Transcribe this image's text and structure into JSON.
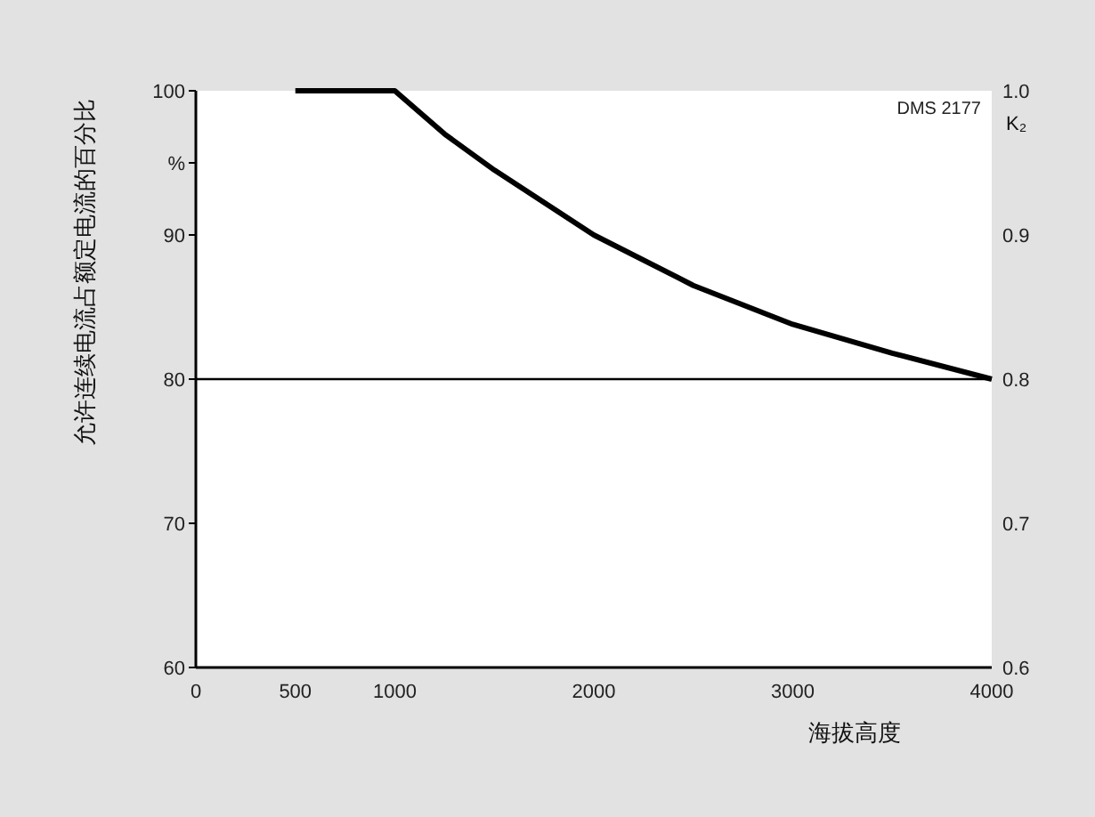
{
  "chart_data": {
    "type": "line",
    "xlabel": "海拔高度",
    "ylabel": "允许连续电流占额定电流的百分比",
    "y2label": "K₂",
    "annotations": [
      "DMS 2177"
    ],
    "x": [
      500,
      1000,
      1250,
      1500,
      2000,
      2500,
      3000,
      3500,
      4000
    ],
    "series": [
      {
        "color": "#000000",
        "values": [
          100,
          100,
          97,
          94.5,
          90,
          86.5,
          83.8,
          81.8,
          80
        ]
      }
    ],
    "xlim": [
      0,
      4000
    ],
    "xticks": [
      0,
      500,
      1000,
      2000,
      3000,
      4000
    ],
    "ylim": [
      60,
      100
    ],
    "yticks": [
      60,
      70,
      80,
      {
        "value": 95,
        "label": "%"
      },
      90,
      100
    ],
    "y2lim": [
      0.6,
      1.0
    ],
    "y2ticks": [
      0.6,
      0.7,
      0.8,
      0.9,
      {
        "value": 1.0,
        "label": "1.0"
      }
    ],
    "ref_lines": [
      {
        "axis": "y",
        "value": 80,
        "color": "#000000"
      }
    ],
    "grid": false,
    "marker": "none",
    "line_style": "solid"
  }
}
